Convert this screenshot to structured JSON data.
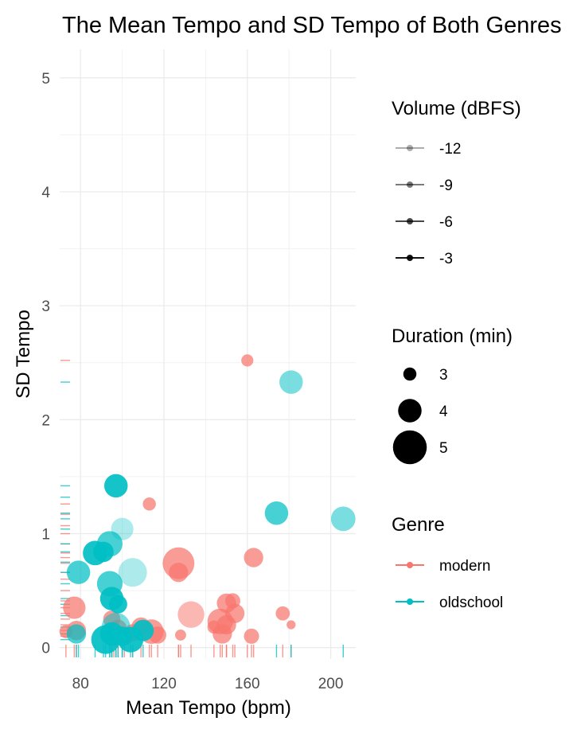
{
  "chart_data": {
    "type": "scatter",
    "title": "The Mean Tempo and SD Tempo of Both Genres",
    "xlabel": "Mean Tempo (bpm)",
    "ylabel": "SD Tempo",
    "xlim": [
      70,
      212
    ],
    "ylim": [
      -0.1,
      5.25
    ],
    "xticks": [
      80,
      120,
      160,
      200
    ],
    "yticks": [
      0,
      1,
      2,
      3,
      4,
      5
    ],
    "grid": true,
    "rug": true,
    "colors": {
      "modern": "#F8766D",
      "oldschool": "#00BFC4"
    },
    "legends": {
      "volume": {
        "title": "Volume (dBFS)",
        "entries": [
          {
            "label": "-12",
            "value": -12
          },
          {
            "label": "-9",
            "value": -9
          },
          {
            "label": "-6",
            "value": -6
          },
          {
            "label": "-3",
            "value": -3
          }
        ]
      },
      "duration": {
        "title": "Duration (min)",
        "entries": [
          {
            "label": "3",
            "value": 3
          },
          {
            "label": "4",
            "value": 4
          },
          {
            "label": "5",
            "value": 5
          }
        ]
      },
      "genre": {
        "title": "Genre",
        "entries": [
          {
            "label": "modern",
            "color": "#F8766D"
          },
          {
            "label": "oldschool",
            "color": "#00BFC4"
          }
        ]
      }
    },
    "series": [
      {
        "name": "modern",
        "points": [
          {
            "x": 160,
            "y": 2.52,
            "dur": 2.9,
            "vol": -6
          },
          {
            "x": 113,
            "y": 1.26,
            "dur": 3.0,
            "vol": -6
          },
          {
            "x": 163,
            "y": 0.79,
            "dur": 3.6,
            "vol": -6
          },
          {
            "x": 127,
            "y": 0.74,
            "dur": 4.8,
            "vol": -6
          },
          {
            "x": 127,
            "y": 0.66,
            "dur": 3.6,
            "vol": -6
          },
          {
            "x": 77,
            "y": 0.35,
            "dur": 3.9,
            "vol": -6
          },
          {
            "x": 133,
            "y": 0.29,
            "dur": 4.3,
            "vol": -9
          },
          {
            "x": 150,
            "y": 0.39,
            "dur": 3.6,
            "vol": -6
          },
          {
            "x": 153,
            "y": 0.41,
            "dur": 3.2,
            "vol": -6
          },
          {
            "x": 154,
            "y": 0.3,
            "dur": 3.6,
            "vol": -6
          },
          {
            "x": 177,
            "y": 0.3,
            "dur": 3.1,
            "vol": -6
          },
          {
            "x": 181,
            "y": 0.2,
            "dur": 2.6,
            "vol": -6
          },
          {
            "x": 147,
            "y": 0.23,
            "dur": 4.2,
            "vol": -6
          },
          {
            "x": 144,
            "y": 0.18,
            "dur": 3.0,
            "vol": -6
          },
          {
            "x": 150,
            "y": 0.2,
            "dur": 3.6,
            "vol": -6
          },
          {
            "x": 148,
            "y": 0.12,
            "dur": 3.6,
            "vol": -6
          },
          {
            "x": 162,
            "y": 0.1,
            "dur": 3.2,
            "vol": -6
          },
          {
            "x": 128,
            "y": 0.11,
            "dur": 2.8,
            "vol": -6
          },
          {
            "x": 117,
            "y": 0.11,
            "dur": 3.4,
            "vol": -6
          },
          {
            "x": 114,
            "y": 0.14,
            "dur": 4.1,
            "vol": -6
          },
          {
            "x": 109,
            "y": 0.18,
            "dur": 3.6,
            "vol": -6
          },
          {
            "x": 95,
            "y": 0.25,
            "dur": 3.4,
            "vol": -6
          },
          {
            "x": 98,
            "y": 0.17,
            "dur": 3.4,
            "vol": -6
          },
          {
            "x": 96,
            "y": 0.09,
            "dur": 3.4,
            "vol": -6
          },
          {
            "x": 105,
            "y": 0.13,
            "dur": 3.4,
            "vol": -6
          },
          {
            "x": 101,
            "y": 0.1,
            "dur": 3.5,
            "vol": -6
          },
          {
            "x": 78,
            "y": 0.15,
            "dur": 3.6,
            "vol": -6
          },
          {
            "x": 73,
            "y": 0.14,
            "dur": 3.0,
            "vol": -6
          }
        ]
      },
      {
        "name": "oldschool",
        "points": [
          {
            "x": 181,
            "y": 2.33,
            "dur": 4.0,
            "vol": -9
          },
          {
            "x": 97,
            "y": 1.42,
            "dur": 4.0,
            "vol": -3
          },
          {
            "x": 174,
            "y": 1.18,
            "dur": 4.0,
            "vol": -6
          },
          {
            "x": 206,
            "y": 1.13,
            "dur": 4.1,
            "vol": -9
          },
          {
            "x": 100,
            "y": 1.04,
            "dur": 3.9,
            "vol": -12
          },
          {
            "x": 94,
            "y": 0.91,
            "dur": 4.2,
            "vol": -6
          },
          {
            "x": 87,
            "y": 0.83,
            "dur": 4.1,
            "vol": -3
          },
          {
            "x": 91,
            "y": 0.84,
            "dur": 3.7,
            "vol": -3
          },
          {
            "x": 105,
            "y": 0.66,
            "dur": 4.5,
            "vol": -12
          },
          {
            "x": 79,
            "y": 0.66,
            "dur": 4.0,
            "vol": -6
          },
          {
            "x": 94,
            "y": 0.56,
            "dur": 4.2,
            "vol": -6
          },
          {
            "x": 95,
            "y": 0.43,
            "dur": 4.0,
            "vol": -3
          },
          {
            "x": 98,
            "y": 0.38,
            "dur": 3.5,
            "vol": -3
          },
          {
            "x": 78,
            "y": 0.12,
            "dur": 3.6,
            "vol": -6
          },
          {
            "x": 97,
            "y": 0.18,
            "dur": 4.5,
            "vol": -9
          },
          {
            "x": 110,
            "y": 0.15,
            "dur": 3.8,
            "vol": -3
          },
          {
            "x": 92,
            "y": 0.07,
            "dur": 4.5,
            "vol": -3
          },
          {
            "x": 95,
            "y": 0.12,
            "dur": 4.0,
            "vol": -3
          },
          {
            "x": 104,
            "y": 0.07,
            "dur": 4.2,
            "vol": -3
          },
          {
            "x": 100,
            "y": 0.1,
            "dur": 3.6,
            "vol": -3
          }
        ]
      }
    ],
    "rug_y_modern": [
      2.52,
      1.26,
      1.17,
      1.07,
      1.0,
      0.91,
      0.83,
      0.79,
      0.74,
      0.66,
      0.6,
      0.5,
      0.41,
      0.35,
      0.3,
      0.25,
      0.2,
      0.15,
      0.12,
      0.1
    ],
    "rug_y_oldschool": [
      2.33,
      1.42,
      1.32,
      1.18,
      1.13,
      1.04,
      0.91,
      0.84,
      0.75,
      0.66,
      0.56,
      0.43,
      0.38,
      0.28,
      0.18,
      0.12,
      0.07
    ]
  }
}
